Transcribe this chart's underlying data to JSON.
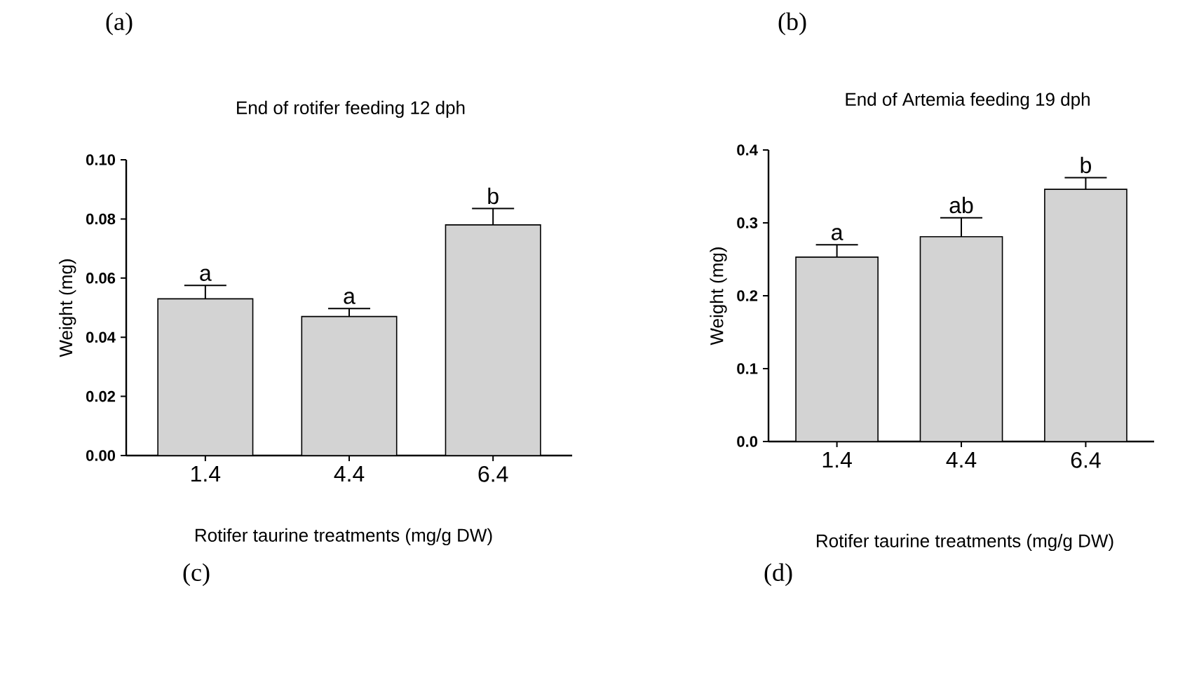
{
  "chart_data": [
    {
      "type": "bar",
      "title": "End of rotifer feeding 12 dph",
      "xlabel": "Rotifer taurine treatments (mg/g DW)",
      "ylabel": "Weight (mg)",
      "categories": [
        "1.4",
        "4.4",
        "6.4"
      ],
      "values": [
        0.053,
        0.047,
        0.078
      ],
      "errors": [
        0.0045,
        0.0027,
        0.0055
      ],
      "color": "#d3d3d3",
      "ylim": [
        0,
        0.1
      ],
      "yticks": [
        {
          "value": 0,
          "label": "0.00"
        },
        {
          "value": 0.02,
          "label": "0.02"
        },
        {
          "value": 0.04,
          "label": "0.04"
        },
        {
          "value": 0.06,
          "label": "0.06"
        },
        {
          "value": 0.08,
          "label": "0.08"
        },
        {
          "value": 0.1,
          "label": "0.10"
        }
      ],
      "annotations": [
        "(a)",
        "(c)",
        {
          "text": "a",
          "x": "1.4",
          "y": 0.0575
        },
        {
          "text": "a",
          "x": "4.4",
          "y": 0.0497
        },
        {
          "text": "b",
          "x": "6.4",
          "y": 0.0835
        }
      ]
    },
    {
      "type": "bar",
      "title": "End of Artemia feeding 19 dph",
      "xlabel": "Rotifer taurine treatments (mg/g DW)",
      "ylabel": "Weight (mg)",
      "categories": [
        "1.4",
        "4.4",
        "6.4"
      ],
      "values": [
        0.253,
        0.281,
        0.346
      ],
      "errors": [
        0.017,
        0.026,
        0.016
      ],
      "color": "#d3d3d3",
      "ylim": [
        0,
        0.4
      ],
      "yticks": [
        {
          "value": 0,
          "label": "0.0"
        },
        {
          "value": 0.1,
          "label": "0.1"
        },
        {
          "value": 0.2,
          "label": "0.2"
        },
        {
          "value": 0.3,
          "label": "0.3"
        },
        {
          "value": 0.4,
          "label": "0.4"
        }
      ],
      "annotations": [
        "(b)",
        "(d)",
        {
          "text": "a",
          "x": "1.4",
          "y": 0.27
        },
        {
          "text": "ab",
          "x": "4.4",
          "y": 0.307
        },
        {
          "text": "b",
          "x": "6.4",
          "y": 0.362
        }
      ]
    }
  ]
}
